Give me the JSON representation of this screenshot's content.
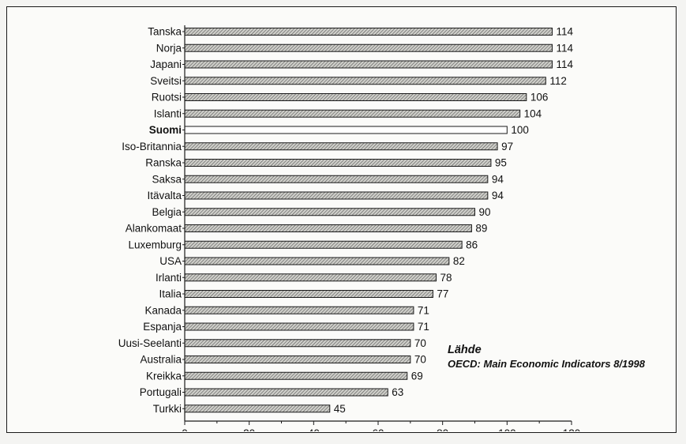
{
  "chart_data": {
    "type": "bar",
    "orientation": "horizontal",
    "categories": [
      "Tanska",
      "Norja",
      "Japani",
      "Sveitsi",
      "Ruotsi",
      "Islanti",
      "Suomi",
      "Iso-Britannia",
      "Ranska",
      "Saksa",
      "Itävalta",
      "Belgia",
      "Alankomaat",
      "Luxemburg",
      "USA",
      "Irlanti",
      "Italia",
      "Kanada",
      "Espanja",
      "Uusi-Seelanti",
      "Australia",
      "Kreikka",
      "Portugali",
      "Turkki"
    ],
    "values": [
      114,
      114,
      114,
      112,
      106,
      104,
      100,
      97,
      95,
      94,
      94,
      90,
      89,
      86,
      82,
      78,
      77,
      71,
      71,
      70,
      70,
      69,
      63,
      45
    ],
    "highlight": "Suomi",
    "xlim": [
      0,
      120
    ],
    "xticks": [
      "0",
      "20",
      "40",
      "60",
      "80",
      "100",
      "120"
    ],
    "grid": false,
    "colors": {
      "bar_fill": "#c9c9c4",
      "bar_hatch": "#5a5a5a",
      "highlight_fill": "#ffffff",
      "stroke": "#1a1a1a"
    }
  },
  "source": {
    "heading": "Lähde",
    "text": "OECD: Main Economic Indicators 8/1998"
  }
}
